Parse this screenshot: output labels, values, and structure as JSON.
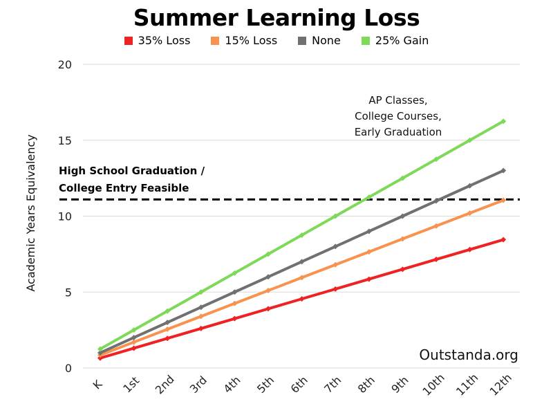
{
  "chart_data": {
    "type": "line",
    "title": "Summer Learning Loss",
    "xlabel": "",
    "ylabel": "Academic Years Equivalency",
    "categories": [
      "K",
      "1st",
      "2nd",
      "3rd",
      "4th",
      "5th",
      "6th",
      "7th",
      "8th",
      "9th",
      "10th",
      "11th",
      "12th"
    ],
    "ylim": [
      0,
      20
    ],
    "yticks": [
      0,
      5,
      10,
      15,
      20
    ],
    "grid": true,
    "legend_position": "top",
    "series": [
      {
        "name": "35% Loss",
        "color": "#ee2222",
        "values": [
          0.65,
          1.3,
          1.95,
          2.6,
          3.25,
          3.9,
          4.55,
          5.2,
          5.85,
          6.5,
          7.15,
          7.8,
          8.45
        ]
      },
      {
        "name": "15% Loss",
        "color": "#f7924f",
        "values": [
          0.85,
          1.7,
          2.55,
          3.4,
          4.25,
          5.1,
          5.95,
          6.8,
          7.65,
          8.5,
          9.35,
          10.2,
          11.05
        ]
      },
      {
        "name": "None",
        "color": "#707070",
        "values": [
          1,
          2,
          3,
          4,
          5,
          6,
          7,
          8,
          9,
          10,
          11,
          12,
          13
        ]
      },
      {
        "name": "25% Gain",
        "color": "#7dd957",
        "values": [
          1.25,
          2.5,
          3.75,
          5,
          6.25,
          7.5,
          8.75,
          10,
          11.25,
          12.5,
          13.75,
          15,
          16.25
        ]
      }
    ],
    "threshold": {
      "value": 11.1,
      "label_lines": [
        "High School Graduation /",
        "College Entry Feasible"
      ]
    },
    "annotation_lines": [
      "AP Classes,",
      "College Courses,",
      "Early Graduation"
    ],
    "credit": "Outstanda.org"
  }
}
